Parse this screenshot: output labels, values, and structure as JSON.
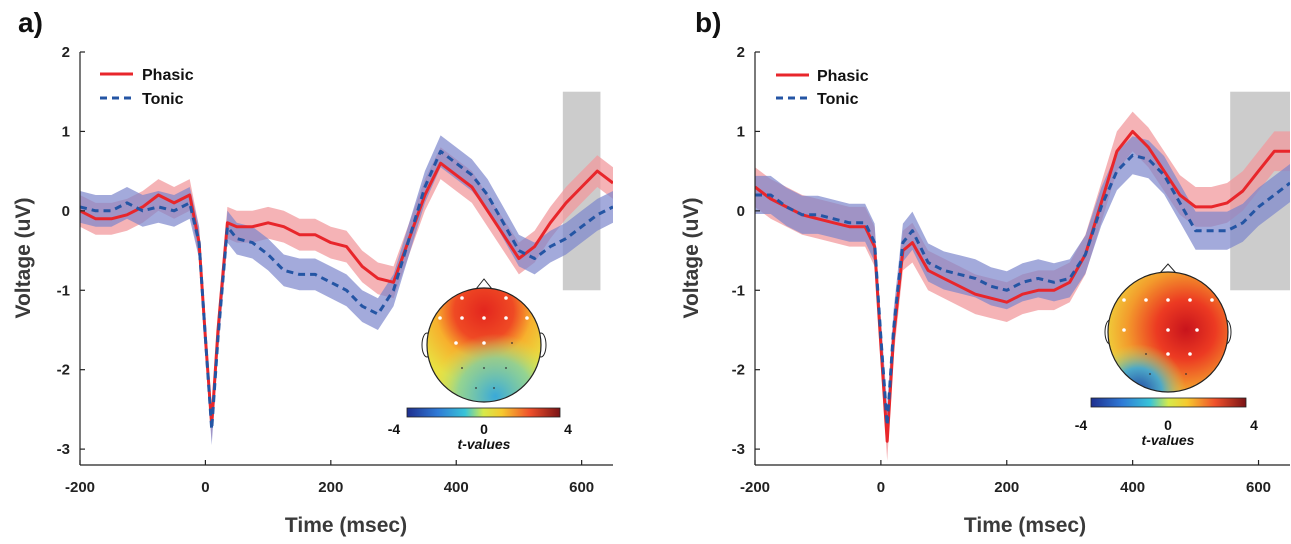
{
  "colors": {
    "phasic": "#e8262b",
    "phasic_band": "#f19a9d",
    "tonic": "#2455a4",
    "tonic_band": "#7c86cc",
    "highlight": "#cccccc"
  },
  "chart_data": [
    {
      "type": "line",
      "panel": "a)",
      "xlabel": "Time (msec)",
      "ylabel": "Voltage (uV)",
      "xlim": [
        -200,
        650
      ],
      "ylim": [
        -3.2,
        2
      ],
      "xticks": [
        "-200",
        "0",
        "200",
        "400",
        "600"
      ],
      "yticks": [
        "2",
        "1",
        "0",
        "-1",
        "-2",
        "-3"
      ],
      "legend": "top-left",
      "shaded_window": [
        570,
        630
      ],
      "x": [
        -200,
        -175,
        -150,
        -125,
        -100,
        -75,
        -50,
        -25,
        -10,
        0,
        10,
        20,
        35,
        50,
        75,
        100,
        125,
        150,
        175,
        200,
        225,
        250,
        275,
        300,
        325,
        350,
        375,
        400,
        425,
        450,
        475,
        500,
        525,
        550,
        575,
        600,
        625,
        650
      ],
      "series": [
        {
          "name": "Phasic",
          "values": [
            0.0,
            -0.1,
            -0.1,
            -0.05,
            0.05,
            0.2,
            0.1,
            0.2,
            -0.4,
            -1.6,
            -2.7,
            -1.5,
            -0.15,
            -0.2,
            -0.2,
            -0.15,
            -0.2,
            -0.3,
            -0.3,
            -0.4,
            -0.45,
            -0.7,
            -0.85,
            -0.9,
            -0.35,
            0.2,
            0.6,
            0.45,
            0.3,
            0.0,
            -0.3,
            -0.6,
            -0.45,
            -0.15,
            0.1,
            0.3,
            0.5,
            0.35
          ]
        },
        {
          "name": "Tonic",
          "values": [
            0.05,
            0.0,
            0.0,
            0.1,
            0.0,
            0.05,
            0.0,
            0.1,
            -0.4,
            -1.6,
            -2.75,
            -1.6,
            -0.2,
            -0.35,
            -0.4,
            -0.55,
            -0.75,
            -0.8,
            -0.8,
            -0.9,
            -1.0,
            -1.2,
            -1.3,
            -1.0,
            -0.35,
            0.3,
            0.75,
            0.6,
            0.45,
            0.2,
            -0.15,
            -0.5,
            -0.6,
            -0.45,
            -0.35,
            -0.2,
            -0.05,
            0.05
          ]
        }
      ],
      "inset": {
        "colorbar_ticks": [
          "-4",
          "0",
          "4"
        ],
        "colorbar_title": "t-values"
      }
    },
    {
      "type": "line",
      "panel": "b)",
      "xlabel": "Time (msec)",
      "ylabel": "Voltage (uV)",
      "xlim": [
        -200,
        650
      ],
      "ylim": [
        -3.2,
        2
      ],
      "xticks": [
        "-200",
        "0",
        "200",
        "400",
        "600"
      ],
      "yticks": [
        "2",
        "1",
        "0",
        "-1",
        "-2",
        "-3"
      ],
      "legend": "top-left",
      "shaded_window": [
        555,
        650
      ],
      "x": [
        -200,
        -175,
        -150,
        -125,
        -100,
        -75,
        -50,
        -25,
        -10,
        0,
        10,
        20,
        35,
        50,
        75,
        100,
        125,
        150,
        175,
        200,
        225,
        250,
        275,
        300,
        325,
        350,
        375,
        400,
        425,
        450,
        475,
        500,
        525,
        550,
        575,
        600,
        625,
        650
      ],
      "series": [
        {
          "name": "Phasic",
          "values": [
            0.3,
            0.15,
            0.05,
            -0.05,
            -0.1,
            -0.15,
            -0.2,
            -0.2,
            -0.45,
            -1.7,
            -2.9,
            -1.6,
            -0.5,
            -0.4,
            -0.75,
            -0.85,
            -0.95,
            -1.05,
            -1.1,
            -1.15,
            -1.05,
            -1.0,
            -1.0,
            -0.9,
            -0.55,
            0.1,
            0.75,
            1.0,
            0.8,
            0.5,
            0.2,
            0.05,
            0.05,
            0.1,
            0.25,
            0.5,
            0.75,
            0.75
          ]
        },
        {
          "name": "Tonic",
          "values": [
            0.2,
            0.2,
            0.05,
            -0.05,
            -0.05,
            -0.1,
            -0.15,
            -0.15,
            -0.4,
            -1.6,
            -2.7,
            -1.5,
            -0.4,
            -0.25,
            -0.65,
            -0.75,
            -0.8,
            -0.85,
            -0.95,
            -1.0,
            -0.9,
            -0.85,
            -0.9,
            -0.85,
            -0.55,
            0.05,
            0.5,
            0.7,
            0.65,
            0.45,
            0.1,
            -0.25,
            -0.25,
            -0.25,
            -0.15,
            0.05,
            0.2,
            0.35
          ]
        }
      ],
      "inset": {
        "colorbar_ticks": [
          "-4",
          "0",
          "4"
        ],
        "colorbar_title": "t-values"
      }
    }
  ]
}
